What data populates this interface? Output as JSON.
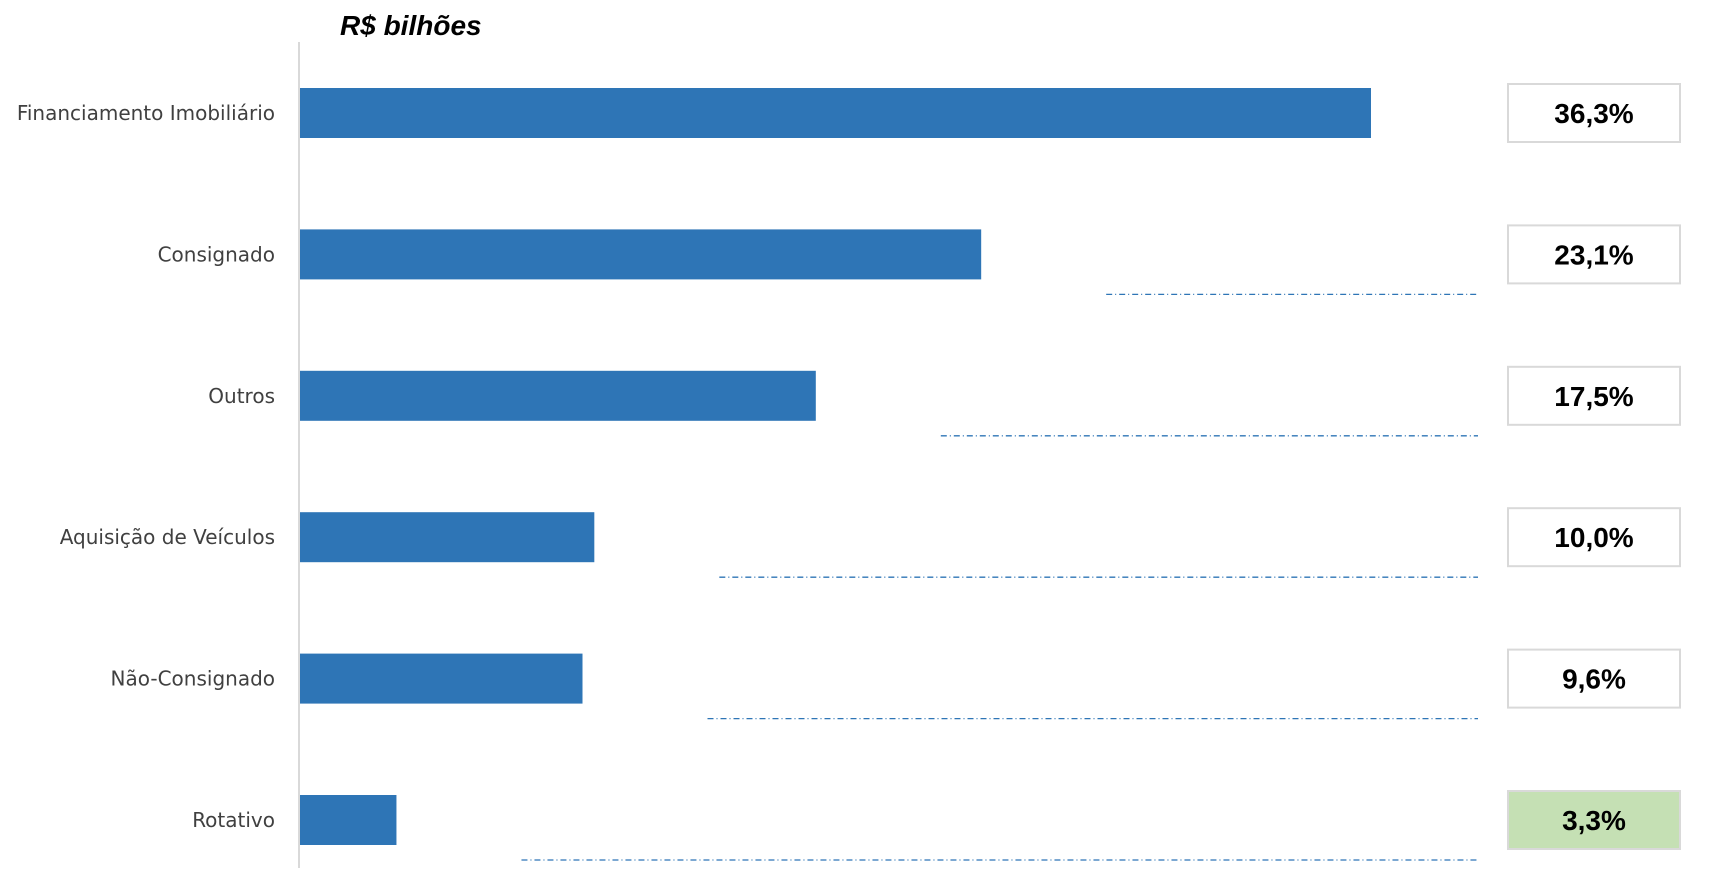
{
  "chart_data": {
    "type": "bar",
    "orientation": "horizontal",
    "unit_label": "R$ bilhões",
    "categories": [
      "Financiamento Imobiliário",
      "Consignado",
      "Outros",
      "Aquisição de Veículos",
      "Não-Consignado",
      "Rotativo"
    ],
    "values": [
      36.3,
      23.1,
      17.5,
      10.0,
      9.6,
      3.3
    ],
    "share_labels": [
      "36,3%",
      "23,1%",
      "17,5%",
      "10,0%",
      "9,6%",
      "3,3%"
    ],
    "highlighted_category": "Rotativo",
    "xlim": [
      0,
      36.3
    ],
    "grid": false,
    "legend": "none",
    "colors": {
      "bar": "#2e75b6",
      "axis": "#d9d9d9",
      "leader_line": "#2e75b6",
      "box_border": "#d9d9d9",
      "box_fill": "#ffffff",
      "highlight_fill": "#c5e0b4"
    }
  }
}
